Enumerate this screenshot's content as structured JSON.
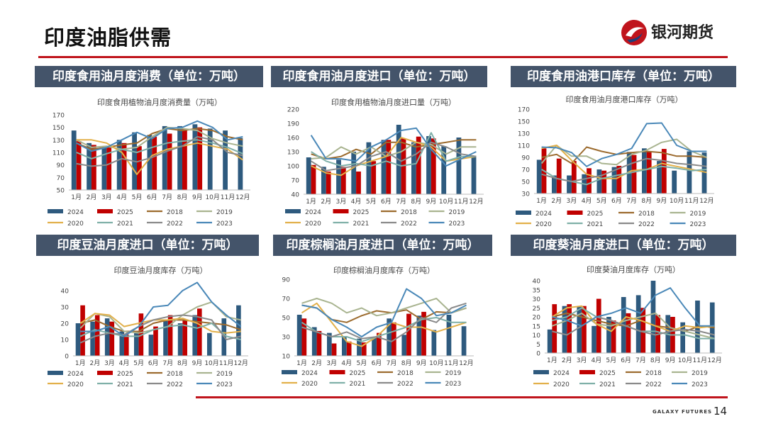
{
  "page": {
    "title": "印度油脂供需",
    "brand": "银河期货",
    "footer_brand": "GALAXY FUTURES",
    "page_number": "14"
  },
  "colors": {
    "2024": "#2e5a7e",
    "2025": "#c00000",
    "2018": "#9c6b2e",
    "2019": "#a9b490",
    "2020": "#e2b04a",
    "2021": "#7fb0a8",
    "2022": "#8a8a8a",
    "2023": "#4a88b8"
  },
  "panel_titles": [
    "印度食用油月度消费（单位：万吨）",
    "印度食用油月度进口（单位：万吨）",
    "印度食用油港口库存（单位：万吨）",
    "印度豆油月度进口（单位：万吨）",
    "印度棕榈油月度进口（单位：万吨）",
    "印度葵油月度进口（单位：万吨）"
  ],
  "chart_data": [
    {
      "type": "bar",
      "title": "印度食用植物油月度消费量（万吨）",
      "categories": [
        "1月",
        "2月",
        "3月",
        "4月",
        "5月",
        "6月",
        "7月",
        "8月",
        "9月",
        "10月",
        "11月",
        "12月"
      ],
      "ylim": [
        50,
        170
      ],
      "yticks": [
        50,
        70,
        90,
        110,
        130,
        150,
        170
      ],
      "bar_series": [
        {
          "name": "2024",
          "values": [
            145,
            125,
            120,
            130,
            142,
            138,
            152,
            152,
            155,
            148,
            145,
            133
          ]
        },
        {
          "name": "2025",
          "values": [
            128,
            122,
            120,
            125,
            120,
            135,
            140,
            148,
            150
          ]
        }
      ],
      "line_series": [
        {
          "name": "2018",
          "values": [
            125,
            115,
            118,
            122,
            125,
            140,
            148,
            145,
            148,
            145,
            135,
            130
          ]
        },
        {
          "name": "2019",
          "values": [
            130,
            118,
            120,
            115,
            118,
            135,
            150,
            148,
            145,
            132,
            125,
            120
          ]
        },
        {
          "name": "2020",
          "values": [
            130,
            130,
            125,
            110,
            75,
            105,
            115,
            120,
            125,
            120,
            115,
            98
          ]
        },
        {
          "name": "2021",
          "values": [
            110,
            100,
            108,
            115,
            110,
            118,
            125,
            128,
            130,
            125,
            118,
            108
          ]
        },
        {
          "name": "2022",
          "values": [
            92,
            88,
            90,
            100,
            95,
            102,
            112,
            120,
            135,
            130,
            110,
            105
          ]
        },
        {
          "name": "2023",
          "values": [
            125,
            112,
            118,
            130,
            142,
            132,
            148,
            150,
            160,
            150,
            130,
            135
          ]
        }
      ]
    },
    {
      "type": "bar",
      "title": "印度食用植物油月度进口量（万吨）",
      "categories": [
        "1月",
        "2月",
        "3月",
        "4月",
        "5月",
        "6月",
        "7月",
        "8月",
        "9月",
        "10月",
        "11月",
        "12月"
      ],
      "ylim": [
        40,
        220
      ],
      "yticks": [
        40,
        70,
        100,
        130,
        160,
        190,
        220
      ],
      "bar_series": [
        {
          "name": "2024",
          "values": [
            118,
            98,
            113,
            130,
            150,
            155,
            187,
            150,
            163,
            142,
            160,
            120
          ]
        },
        {
          "name": "2025",
          "values": [
            102,
            88,
            98,
            88,
            110,
            155,
            158,
            162,
            158
          ]
        }
      ],
      "line_series": [
        {
          "name": "2018",
          "values": [
            125,
            115,
            120,
            135,
            125,
            150,
            150,
            140,
            145,
            150,
            155,
            155
          ]
        },
        {
          "name": "2019",
          "values": [
            115,
            118,
            140,
            125,
            140,
            120,
            130,
            150,
            145,
            125,
            140,
            140
          ]
        },
        {
          "name": "2020",
          "values": [
            100,
            85,
            80,
            100,
            110,
            120,
            160,
            150,
            140,
            110,
            115,
            120
          ]
        },
        {
          "name": "2021",
          "values": [
            130,
            110,
            100,
            105,
            100,
            110,
            100,
            105,
            170,
            110,
            120,
            120
          ]
        },
        {
          "name": "2022",
          "values": [
            110,
            90,
            95,
            100,
            120,
            130,
            110,
            125,
            150,
            140,
            125,
            120
          ]
        },
        {
          "name": "2023",
          "values": [
            165,
            115,
            115,
            110,
            140,
            155,
            175,
            180,
            135,
            100,
            115,
            130
          ]
        }
      ]
    },
    {
      "type": "bar",
      "title": "印度食用油月度港口库存（万吨）",
      "categories": [
        "1月",
        "2月",
        "3月",
        "4月",
        "5月",
        "6月",
        "7月",
        "8月",
        "9月",
        "10月",
        "11月",
        "12月"
      ],
      "ylim": [
        30,
        170
      ],
      "yticks": [
        30,
        50,
        70,
        90,
        110,
        130,
        150,
        170
      ],
      "bar_series": [
        {
          "name": "2024",
          "values": [
            86,
            60,
            60,
            62,
            70,
            74,
            99,
            105,
            84,
            68,
            100,
            98
          ]
        },
        {
          "name": "2025",
          "values": [
            105,
            88,
            84,
            72,
            68,
            76,
            94,
            100,
            104
          ]
        }
      ],
      "line_series": [
        {
          "name": "2018",
          "values": [
            90,
            95,
            80,
            107,
            100,
            95,
            98,
            100,
            98,
            92,
            92,
            90
          ]
        },
        {
          "name": "2019",
          "values": [
            80,
            110,
            92,
            92,
            80,
            78,
            95,
            102,
            115,
            120,
            100,
            90
          ]
        },
        {
          "name": "2020",
          "values": [
            105,
            110,
            85,
            62,
            55,
            55,
            68,
            70,
            80,
            75,
            70,
            65
          ]
        },
        {
          "name": "2021",
          "values": [
            70,
            55,
            50,
            45,
            55,
            60,
            65,
            70,
            75,
            72,
            68,
            70
          ]
        },
        {
          "name": "2022",
          "values": [
            62,
            55,
            50,
            55,
            60,
            70,
            80,
            88,
            85,
            80,
            78,
            75
          ]
        },
        {
          "name": "2023",
          "values": [
            107,
            106,
            98,
            75,
            88,
            95,
            105,
            146,
            147,
            110,
            100,
            100
          ]
        }
      ]
    },
    {
      "type": "bar",
      "title": "印度豆油月度库存（万吨）",
      "categories": [
        "1月",
        "2月",
        "3月",
        "4月",
        "5月",
        "6月",
        "7月",
        "8月",
        "9月",
        "10月",
        "11月",
        "12月"
      ],
      "ylim": [
        0,
        40
      ],
      "yticks": [
        0,
        10,
        20,
        30,
        40
      ],
      "bar_series": [
        {
          "name": "2024",
          "values": [
            20,
            21,
            23,
            15,
            15,
            13,
            22,
            20,
            25,
            14,
            23,
            31
          ]
        },
        {
          "name": "2025",
          "values": [
            31,
            25,
            21,
            13,
            26,
            18,
            25,
            22,
            29
          ]
        }
      ],
      "line_series": [
        {
          "name": "2018",
          "values": [
            20,
            22,
            18,
            15,
            15,
            20,
            22,
            22,
            21,
            20,
            19,
            16
          ]
        },
        {
          "name": "2019",
          "values": [
            17,
            26,
            24,
            15,
            14,
            16,
            18,
            25,
            30,
            33,
            24,
            22
          ]
        },
        {
          "name": "2020",
          "values": [
            20,
            26,
            25,
            18,
            20,
            22,
            22,
            23,
            20,
            15,
            14,
            15
          ]
        },
        {
          "name": "2021",
          "values": [
            12,
            16,
            14,
            12,
            12,
            16,
            18,
            19,
            17,
            20,
            12,
            10
          ]
        },
        {
          "name": "2022",
          "values": [
            8,
            12,
            14,
            13,
            18,
            22,
            24,
            25,
            24,
            22,
            10,
            12
          ]
        },
        {
          "name": "2023",
          "values": [
            15,
            15,
            18,
            12,
            18,
            30,
            31,
            40,
            45,
            33,
            25,
            18
          ]
        }
      ]
    },
    {
      "type": "bar",
      "title": "印度棕榈油月度库存（万吨）",
      "categories": [
        "1月",
        "2月",
        "3月",
        "4月",
        "5月",
        "6月",
        "7月",
        "8月",
        "9月",
        "10月",
        "11月",
        "12月"
      ],
      "ylim": [
        10,
        90
      ],
      "yticks": [
        10,
        30,
        50,
        70,
        90
      ],
      "bar_series": [
        {
          "name": "2024",
          "values": [
            53,
            40,
            34,
            30,
            28,
            29,
            49,
            32,
            52,
            37,
            53,
            41
          ]
        },
        {
          "name": "2025",
          "values": [
            49,
            36,
            23,
            25,
            24,
            34,
            45,
            54,
            56
          ]
        }
      ],
      "line_series": [
        {
          "name": "2018",
          "values": [
            63,
            60,
            48,
            45,
            52,
            57,
            55,
            58,
            48,
            56,
            55,
            60
          ]
        },
        {
          "name": "2019",
          "values": [
            65,
            70,
            65,
            55,
            60,
            52,
            55,
            60,
            65,
            70,
            55,
            60
          ]
        },
        {
          "name": "2020",
          "values": [
            55,
            65,
            45,
            25,
            20,
            30,
            45,
            40,
            40,
            35,
            40,
            45
          ]
        },
        {
          "name": "2021",
          "values": [
            45,
            35,
            30,
            30,
            25,
            30,
            35,
            40,
            48,
            50,
            45,
            45
          ]
        },
        {
          "name": "2022",
          "values": [
            40,
            35,
            30,
            35,
            28,
            30,
            25,
            35,
            50,
            45,
            60,
            65
          ]
        },
        {
          "name": "2023",
          "values": [
            63,
            60,
            48,
            40,
            30,
            40,
            45,
            80,
            70,
            52,
            55,
            63
          ]
        }
      ]
    },
    {
      "type": "bar",
      "title": "印度葵油月度库存（万吨）",
      "categories": [
        "1月",
        "2月",
        "3月",
        "4月",
        "5月",
        "6月",
        "7月",
        "8月",
        "9月",
        "10月",
        "11月",
        "12月"
      ],
      "ylim": [
        0,
        40
      ],
      "yticks": [
        0,
        5,
        10,
        15,
        20,
        25,
        30,
        35,
        40
      ],
      "bar_series": [
        {
          "name": "2024",
          "values": [
            13,
            26,
            26,
            15,
            20,
            31,
            32,
            40,
            21,
            17,
            29,
            28
          ]
        },
        {
          "name": "2025",
          "values": [
            27,
            27,
            26,
            30,
            18,
            22,
            25,
            21,
            20
          ]
        }
      ],
      "line_series": [
        {
          "name": "2018",
          "values": [
            20,
            22,
            20,
            18,
            16,
            15,
            18,
            15,
            14,
            12,
            15,
            14
          ]
        },
        {
          "name": "2019",
          "values": [
            15,
            18,
            22,
            16,
            15,
            18,
            20,
            22,
            14,
            12,
            10,
            8
          ]
        },
        {
          "name": "2020",
          "values": [
            20,
            25,
            26,
            16,
            12,
            20,
            18,
            15,
            12,
            15,
            14,
            15
          ]
        },
        {
          "name": "2021",
          "values": [
            18,
            20,
            25,
            20,
            18,
            15,
            12,
            12,
            10,
            10,
            8,
            8
          ]
        },
        {
          "name": "2022",
          "values": [
            12,
            10,
            15,
            20,
            18,
            15,
            12,
            10,
            12,
            13,
            12,
            10
          ]
        },
        {
          "name": "2023",
          "values": [
            20,
            18,
            15,
            20,
            22,
            25,
            22,
            32,
            36,
            25,
            15,
            15
          ]
        }
      ]
    }
  ]
}
